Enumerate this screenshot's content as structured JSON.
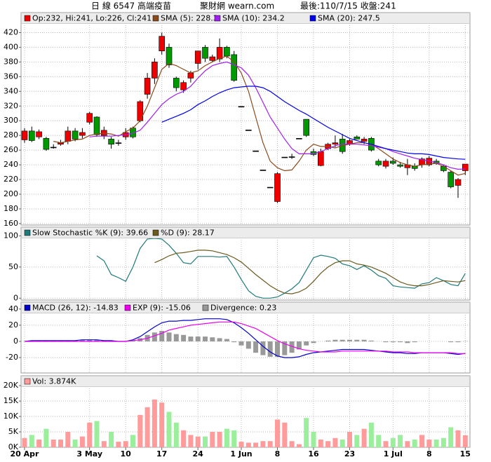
{
  "header": {
    "title": "日 線 6547 高端疫苗",
    "site": "聚財網 wearn.com",
    "last": "最後:110/7/15 收盤:241"
  },
  "chart_data": [
    {
      "type": "candlestick",
      "legend_label": "Op:232, Hi:241, Lo:226, Cl:241",
      "up_color": "#ee0000",
      "down_color": "#009900",
      "flat_color": "#000000",
      "open": [
        274,
        286,
        278,
        276,
        264,
        268,
        272,
        286,
        280,
        298,
        305,
        280,
        275,
        270,
        278,
        290,
        300,
        336,
        358,
        395,
        400,
        358,
        342,
        358,
        378,
        400,
        382,
        384,
        400,
        390,
        319.5,
        287.5,
        259,
        233,
        209.5,
        190,
        250.5,
        251,
        276,
        302,
        258,
        239,
        262,
        268,
        275,
        268,
        278,
        272,
        276,
        245,
        238,
        245,
        240,
        236,
        238,
        240,
        240,
        245,
        238,
        230,
        212,
        232
      ],
      "high": [
        290,
        292,
        288,
        278,
        268,
        274,
        292,
        290,
        290,
        312,
        306,
        292,
        278,
        274,
        290,
        292,
        328,
        365,
        385,
        420,
        405,
        360,
        355,
        368,
        395,
        403,
        390,
        412,
        402,
        395,
        319.5,
        287.5,
        259,
        233,
        209.5,
        230,
        250.5,
        255,
        276,
        302,
        262,
        262,
        270,
        280,
        282,
        275,
        280,
        278,
        278,
        248,
        248,
        250,
        244,
        248,
        242,
        250,
        252,
        248,
        240,
        232,
        222,
        241
      ],
      "low": [
        270,
        271,
        275,
        259,
        262,
        266,
        268,
        272,
        276,
        295,
        278,
        275,
        262,
        266,
        274,
        276,
        298,
        330,
        350,
        390,
        372,
        340,
        338,
        352,
        370,
        380,
        380,
        380,
        385,
        353,
        319.5,
        287.5,
        259,
        233,
        209.5,
        188,
        250.5,
        248,
        276,
        278,
        252,
        238,
        260,
        264,
        255,
        266,
        275,
        268,
        258,
        238,
        235,
        240,
        236,
        226,
        232,
        236,
        238,
        240,
        230,
        208,
        195,
        226
      ],
      "close": [
        286,
        273,
        285,
        261,
        264,
        270,
        286,
        275,
        284,
        310,
        281,
        287,
        268,
        270,
        284,
        278,
        326,
        358,
        380,
        415,
        376,
        345,
        352,
        365,
        395,
        385,
        387,
        400,
        388,
        355,
        319.5,
        287.5,
        259,
        233,
        209.5,
        228,
        250.5,
        251,
        276,
        280,
        254,
        258,
        268,
        270,
        258,
        273,
        275,
        275,
        260,
        240,
        245,
        242,
        238,
        240,
        235,
        248,
        249,
        242,
        232,
        210,
        220,
        241
      ],
      "series": [
        {
          "name": "SMA (5): 228.3",
          "color": "#8b4a1c",
          "values": [
            null,
            null,
            null,
            null,
            272,
            270,
            272,
            274,
            275,
            280,
            282,
            283,
            282,
            279,
            285,
            290,
            300,
            320,
            345,
            370,
            378,
            375,
            370,
            365,
            368,
            375,
            380,
            385,
            388,
            380,
            365,
            340,
            305,
            270,
            245,
            236,
            232,
            233,
            245,
            260,
            268,
            265,
            265,
            263,
            266,
            268,
            270,
            270,
            268,
            262,
            255,
            248,
            243,
            240,
            238,
            240,
            241,
            242,
            238,
            232,
            226,
            228.3
          ]
        },
        {
          "name": "SMA (10): 234.2",
          "color": "#a020f0",
          "values": [
            null,
            null,
            null,
            null,
            null,
            null,
            null,
            null,
            null,
            278,
            279,
            279,
            279,
            280,
            281,
            283,
            287,
            298,
            310,
            322,
            330,
            336,
            340,
            347,
            358,
            368,
            375,
            378,
            380,
            376,
            372,
            362,
            345,
            325,
            305,
            290,
            275,
            262,
            255,
            255,
            255,
            258,
            262,
            266,
            268,
            268,
            268,
            267,
            266,
            264,
            262,
            258,
            255,
            252,
            249,
            247,
            245,
            243,
            240,
            236,
            234,
            234.2
          ]
        },
        {
          "name": "SMA (20): 247.5",
          "color": "#0000ee",
          "values": [
            null,
            null,
            null,
            null,
            null,
            null,
            null,
            null,
            null,
            null,
            null,
            null,
            null,
            null,
            null,
            null,
            null,
            null,
            null,
            298,
            302,
            306,
            310,
            315,
            322,
            327,
            333,
            338,
            342,
            345,
            346,
            347,
            347,
            345,
            340,
            333,
            326,
            320,
            314,
            309,
            303,
            297,
            291,
            286,
            281,
            276,
            273,
            270,
            268,
            265,
            262,
            260,
            258,
            256,
            255,
            255,
            254,
            252,
            250,
            249,
            248,
            247.5
          ]
        }
      ],
      "ylim": [
        158,
        430
      ],
      "yticks": [
        160,
        180,
        200,
        220,
        240,
        260,
        280,
        300,
        320,
        340,
        360,
        380,
        400,
        420
      ],
      "grid": true
    },
    {
      "type": "line",
      "series": [
        {
          "name": "Slow Stochastic %K (9): 39.66",
          "color": "#1f7a7a",
          "values": [
            null,
            null,
            null,
            null,
            null,
            null,
            null,
            null,
            null,
            null,
            68,
            60,
            38,
            33,
            27,
            50,
            80,
            95,
            96,
            95,
            85,
            72,
            57,
            55,
            67,
            67,
            67,
            66,
            67,
            50,
            30,
            12,
            3,
            0,
            0,
            2,
            8,
            15,
            25,
            45,
            65,
            69,
            67,
            64,
            55,
            52,
            46,
            52,
            45,
            36,
            32,
            20,
            18,
            17,
            16,
            23,
            25,
            33,
            28,
            22,
            20,
            39.66
          ]
        },
        {
          "name": "%D (9): 28.17",
          "color": "#6b5a1e",
          "values": [
            null,
            null,
            null,
            null,
            null,
            null,
            null,
            null,
            null,
            null,
            null,
            null,
            null,
            null,
            null,
            null,
            null,
            null,
            57,
            62,
            68,
            72,
            73,
            75,
            77,
            77,
            76,
            73,
            70,
            65,
            58,
            48,
            38,
            29,
            20,
            13,
            8,
            7,
            10,
            16,
            27,
            40,
            50,
            57,
            60,
            60,
            55,
            53,
            50,
            45,
            40,
            33,
            26,
            22,
            20,
            20,
            22,
            25,
            28,
            27,
            26,
            28.17
          ]
        }
      ],
      "ylim": [
        -3,
        114
      ],
      "yticks": [
        0,
        50,
        100
      ],
      "grid": true
    },
    {
      "type": "macd",
      "series": [
        {
          "name": "MACD (26, 12): -14.83",
          "color": "#0000cc",
          "type": "line",
          "values": [
            0,
            1,
            1,
            1,
            1,
            1,
            1,
            1,
            2,
            2,
            2,
            1,
            1,
            0,
            0,
            2,
            6,
            12,
            18,
            23,
            25,
            25,
            26,
            26,
            27,
            28,
            28,
            28,
            27,
            23,
            17,
            10,
            2,
            -6,
            -13,
            -18,
            -20,
            -20,
            -19,
            -16,
            -14,
            -13,
            -12,
            -11,
            -10,
            -10,
            -10,
            -10,
            -11,
            -12,
            -13,
            -14,
            -14,
            -15,
            -15,
            -14,
            -14,
            -14,
            -14,
            -15,
            -16,
            -14.83
          ]
        },
        {
          "name": "EXP (9): -15.06",
          "color": "#ee00ee",
          "type": "line",
          "values": [
            0,
            0,
            0,
            0,
            0,
            0,
            0,
            0,
            0,
            0,
            0,
            0,
            0,
            0,
            0,
            1,
            2,
            4,
            7,
            10,
            14,
            16,
            18,
            20,
            21,
            22,
            23,
            24,
            24,
            24,
            22,
            19,
            16,
            11,
            6,
            1,
            -3,
            -6,
            -9,
            -11,
            -12,
            -13,
            -13,
            -13,
            -12,
            -12,
            -12,
            -12,
            -12,
            -12,
            -12,
            -13,
            -13,
            -13,
            -14,
            -14,
            -14,
            -14,
            -14,
            -14,
            -15,
            -15.06
          ]
        },
        {
          "name": "Divergence: 0.23",
          "color": "#999999",
          "type": "bar",
          "values": [
            0,
            1,
            1,
            1,
            1,
            1,
            1,
            1,
            2,
            2,
            2,
            1,
            1,
            0,
            0,
            1,
            4,
            8,
            11,
            13,
            11,
            9,
            8,
            6,
            6,
            6,
            5,
            4,
            3,
            -1,
            -5,
            -9,
            -14,
            -17,
            -19,
            -19,
            -17,
            -14,
            -10,
            -5,
            -2,
            0,
            1,
            2,
            2,
            2,
            2,
            2,
            1,
            0,
            -1,
            -1,
            -1,
            -2,
            -1,
            0,
            0,
            0,
            0,
            -1,
            -1,
            0.23
          ]
        }
      ],
      "ylim": [
        -39,
        48.5
      ],
      "yticks": [
        -20,
        0,
        20,
        40
      ],
      "grid": true
    },
    {
      "type": "bar",
      "categories": [
        "20 Apr",
        null,
        null,
        null,
        null,
        null,
        null,
        null,
        null,
        "3 May",
        null,
        null,
        null,
        null,
        "10",
        null,
        null,
        null,
        null,
        "17",
        null,
        null,
        null,
        null,
        "24",
        null,
        null,
        null,
        null,
        null,
        "1 Jun",
        null,
        null,
        null,
        null,
        "8",
        null,
        null,
        null,
        null,
        "16",
        null,
        null,
        null,
        null,
        "23",
        null,
        null,
        null,
        null,
        null,
        "1 Jul",
        null,
        null,
        null,
        null,
        "8",
        null,
        null,
        null,
        null,
        "15"
      ],
      "series": [
        {
          "name": "Vol: 3.874K",
          "color": "#ff9b9b",
          "down_color": "#9bee9b",
          "values": [
            3,
            4,
            2.5,
            6,
            2.5,
            2.5,
            5,
            2.5,
            3.5,
            8,
            8.5,
            2,
            5,
            1.8,
            2,
            4,
            10.5,
            13,
            15.5,
            14.5,
            11.5,
            8,
            5.5,
            4,
            3.5,
            3.5,
            5,
            5,
            6,
            5.5,
            1.8,
            1.5,
            1.5,
            2,
            2,
            9,
            8,
            2,
            1,
            9.5,
            5,
            2.5,
            2,
            3,
            2.5,
            5,
            4,
            6,
            8,
            4,
            2,
            3,
            4,
            2,
            2.5,
            4,
            2.5,
            2.5,
            3,
            6.5,
            5.5,
            3.874
          ]
        }
      ],
      "ylim": [
        0,
        23.2
      ],
      "yticks": [
        {
          "value": 0,
          "label": "0K"
        },
        {
          "value": 5,
          "label": "5K"
        },
        {
          "value": 10,
          "label": "10K"
        },
        {
          "value": 15,
          "label": "15K"
        },
        {
          "value": 20,
          "label": "20K"
        }
      ],
      "grid": true
    }
  ]
}
